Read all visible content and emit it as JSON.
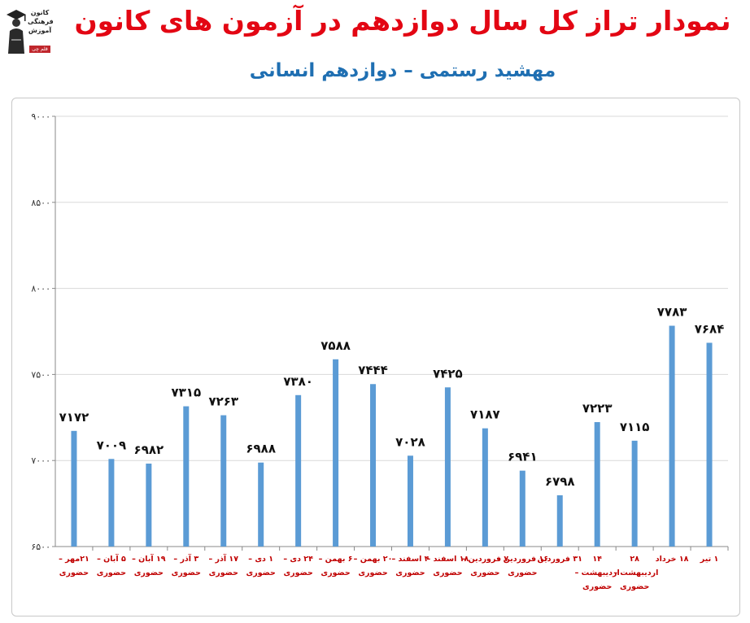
{
  "header": {
    "title": "نمودار تراز کل سال دوازدهم در آزمون های کانون",
    "subtitle": "مهشید رستمی – دوازدهم انسانی",
    "logo_lines": [
      "کانون",
      "فرهنگی",
      "آموزش"
    ],
    "logo_badge": "قلم چی"
  },
  "colors": {
    "bar": "#5b9bd5",
    "title": "#e30613",
    "subtitle": "#1f6fb2",
    "xlabel": "#c00000",
    "grid": "#d9d9d9"
  },
  "chart_data": {
    "type": "bar",
    "title": "نمودار تراز کل سال دوازدهم در آزمون های کانون",
    "subtitle": "مهشید رستمی – دوازدهم انسانی",
    "xlabel": "",
    "ylabel": "",
    "ylim": [
      6500,
      9000
    ],
    "yticks": [
      6500,
      7000,
      7500,
      8000,
      8500,
      9000
    ],
    "ytick_labels": [
      "۶۵۰۰",
      "۷۰۰۰",
      "۷۵۰۰",
      "۸۰۰۰",
      "۸۵۰۰",
      "۹۰۰۰"
    ],
    "grid": true,
    "legend": "none",
    "categories": [
      [
        "۲۱مهر –",
        "حضوری"
      ],
      [
        "۵ آبان –",
        "حضوری"
      ],
      [
        "۱۹ آبان –",
        "حضوری"
      ],
      [
        "۳ آذر –",
        "حضوری"
      ],
      [
        "۱۷ آذر –",
        "حضوری"
      ],
      [
        "۱ دی –",
        "حضوری"
      ],
      [
        "۲۴ دی –",
        "حضوری"
      ],
      [
        "۶ بهمن –",
        "حضوری"
      ],
      [
        "۲۰ بهمن –",
        "حضوری"
      ],
      [
        "۴ اسفند –",
        "حضوری"
      ],
      [
        "۱۸ اسفند –",
        "حضوری"
      ],
      [
        "۷ فروردین –",
        "حضوری"
      ],
      [
        "۱۶ فروردین –",
        "حضوری"
      ],
      [
        "۳۱ فروردین"
      ],
      [
        "۱۴",
        "اردیبهشت –",
        "حضوری"
      ],
      [
        "۲۸",
        "اردیبهشت – ",
        "حضوری"
      ],
      [
        "۱۸ خرداد"
      ],
      [
        "۱ تیر"
      ]
    ],
    "values": [
      7172,
      7009,
      6982,
      7315,
      7263,
      6988,
      7380,
      7588,
      7444,
      7028,
      7425,
      7187,
      6941,
      6798,
      7223,
      7115,
      7783,
      7684
    ],
    "value_labels": [
      "۷۱۷۲",
      "۷۰۰۹",
      "۶۹۸۲",
      "۷۳۱۵",
      "۷۲۶۳",
      "۶۹۸۸",
      "۷۳۸۰",
      "۷۵۸۸",
      "۷۴۴۴",
      "۷۰۲۸",
      "۷۴۲۵",
      "۷۱۸۷",
      "۶۹۴۱",
      "۶۷۹۸",
      "۷۲۲۳",
      "۷۱۱۵",
      "۷۷۸۳",
      "۷۶۸۴"
    ]
  }
}
